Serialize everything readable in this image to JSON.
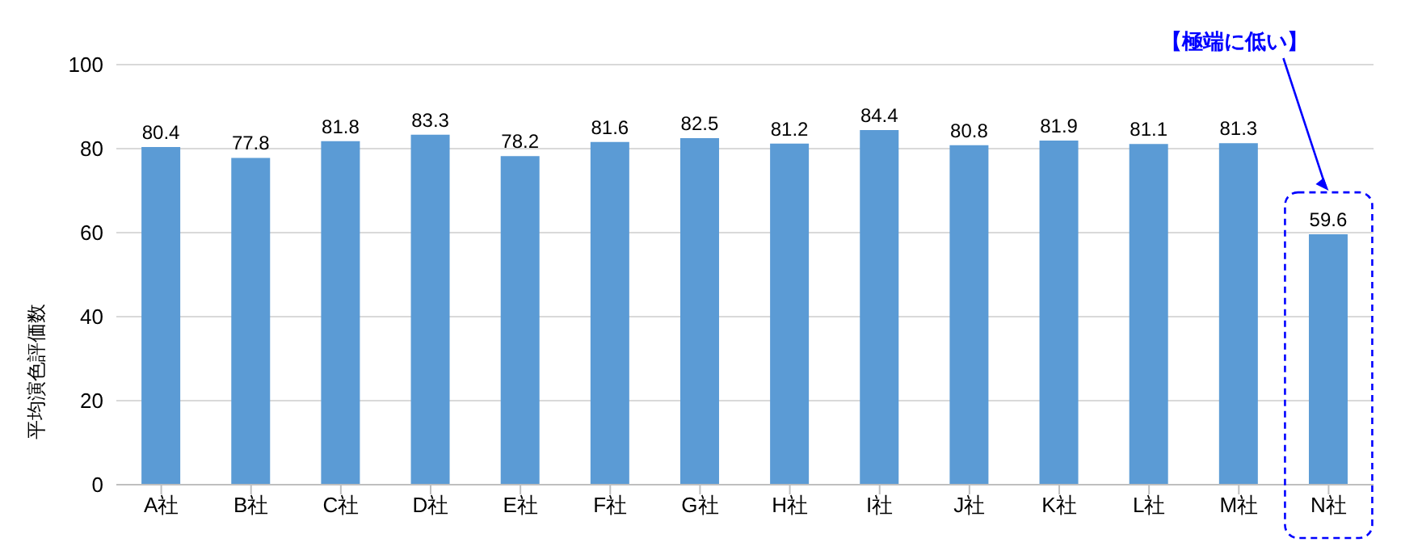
{
  "chart_data": {
    "type": "bar",
    "ylabel": "平均演色評価数",
    "categories": [
      "A社",
      "B社",
      "C社",
      "D社",
      "E社",
      "F社",
      "G社",
      "H社",
      "I社",
      "J社",
      "K社",
      "L社",
      "M社",
      "N社"
    ],
    "values": [
      80.4,
      77.8,
      81.8,
      83.3,
      78.2,
      81.6,
      82.5,
      81.2,
      84.4,
      80.8,
      81.9,
      81.1,
      81.3,
      59.6
    ],
    "color": "#5b9bd5",
    "ylim": [
      0,
      100
    ],
    "yticks": [
      0,
      20,
      40,
      60,
      80,
      100
    ],
    "grid": "y",
    "data_labels": true,
    "legend": false,
    "annotations": [
      "【極端に低い】"
    ]
  }
}
